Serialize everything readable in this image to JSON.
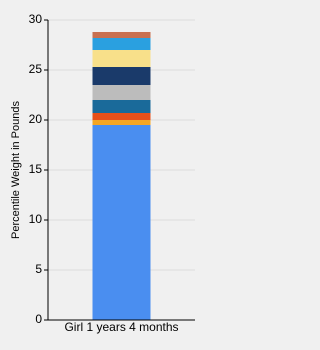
{
  "chart_data": {
    "type": "stacked_bar",
    "y_label": "Percentile Weight in Pounds",
    "categories": [
      "Girl 1 years 4 months"
    ],
    "series": [
      {
        "color": "#4a8ef0",
        "values": [
          19.5
        ]
      },
      {
        "color": "#f5a623",
        "values": [
          0.5
        ]
      },
      {
        "color": "#e8501a",
        "values": [
          0.7
        ]
      },
      {
        "color": "#1a6a9a",
        "values": [
          1.3
        ]
      },
      {
        "color": "#bcbcbc",
        "values": [
          1.5
        ]
      },
      {
        "color": "#1a3a6a",
        "values": [
          1.8
        ]
      },
      {
        "color": "#f8e08a",
        "values": [
          1.7
        ]
      },
      {
        "color": "#2aa0e0",
        "values": [
          1.2
        ]
      },
      {
        "color": "#c87050",
        "values": [
          0.6
        ]
      }
    ],
    "ylim": [
      0,
      30
    ],
    "yticks": [
      0,
      5,
      10,
      15,
      20,
      25,
      30
    ],
    "grid": true
  }
}
